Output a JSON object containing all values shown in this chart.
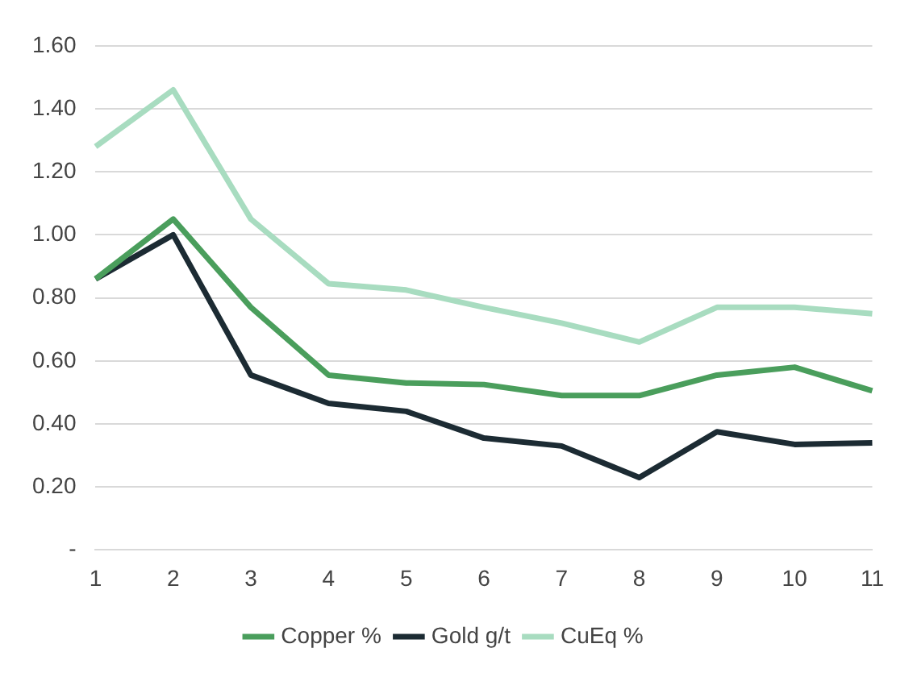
{
  "chart_data": {
    "type": "line",
    "categories": [
      "1",
      "2",
      "3",
      "4",
      "5",
      "6",
      "7",
      "8",
      "9",
      "10",
      "11"
    ],
    "series": [
      {
        "name": "Copper %",
        "color": "#4a9e5c",
        "values": [
          0.86,
          1.05,
          0.77,
          0.555,
          0.53,
          0.525,
          0.49,
          0.49,
          0.555,
          0.58,
          0.505
        ]
      },
      {
        "name": "Gold g/t",
        "color": "#1c2b33",
        "values": [
          0.86,
          1.0,
          0.555,
          0.465,
          0.44,
          0.355,
          0.33,
          0.23,
          0.375,
          0.335,
          0.34
        ]
      },
      {
        "name": "CuEq %",
        "color": "#a8dcc0",
        "values": [
          1.28,
          1.46,
          1.05,
          0.845,
          0.825,
          0.77,
          0.72,
          0.66,
          0.77,
          0.77,
          0.75
        ]
      }
    ],
    "ylim": [
      0,
      1.6
    ],
    "yticks": [
      {
        "value": 0,
        "label": "-"
      },
      {
        "value": 0.2,
        "label": "0.20"
      },
      {
        "value": 0.4,
        "label": "0.40"
      },
      {
        "value": 0.6,
        "label": "0.60"
      },
      {
        "value": 0.8,
        "label": "0.80"
      },
      {
        "value": 1.0,
        "label": "1.00"
      },
      {
        "value": 1.2,
        "label": "1.20"
      },
      {
        "value": 1.4,
        "label": "1.40"
      },
      {
        "value": 1.6,
        "label": "1.60"
      }
    ],
    "grid": "y",
    "legend": "bottom",
    "marker": "none",
    "line_style": "solid"
  }
}
